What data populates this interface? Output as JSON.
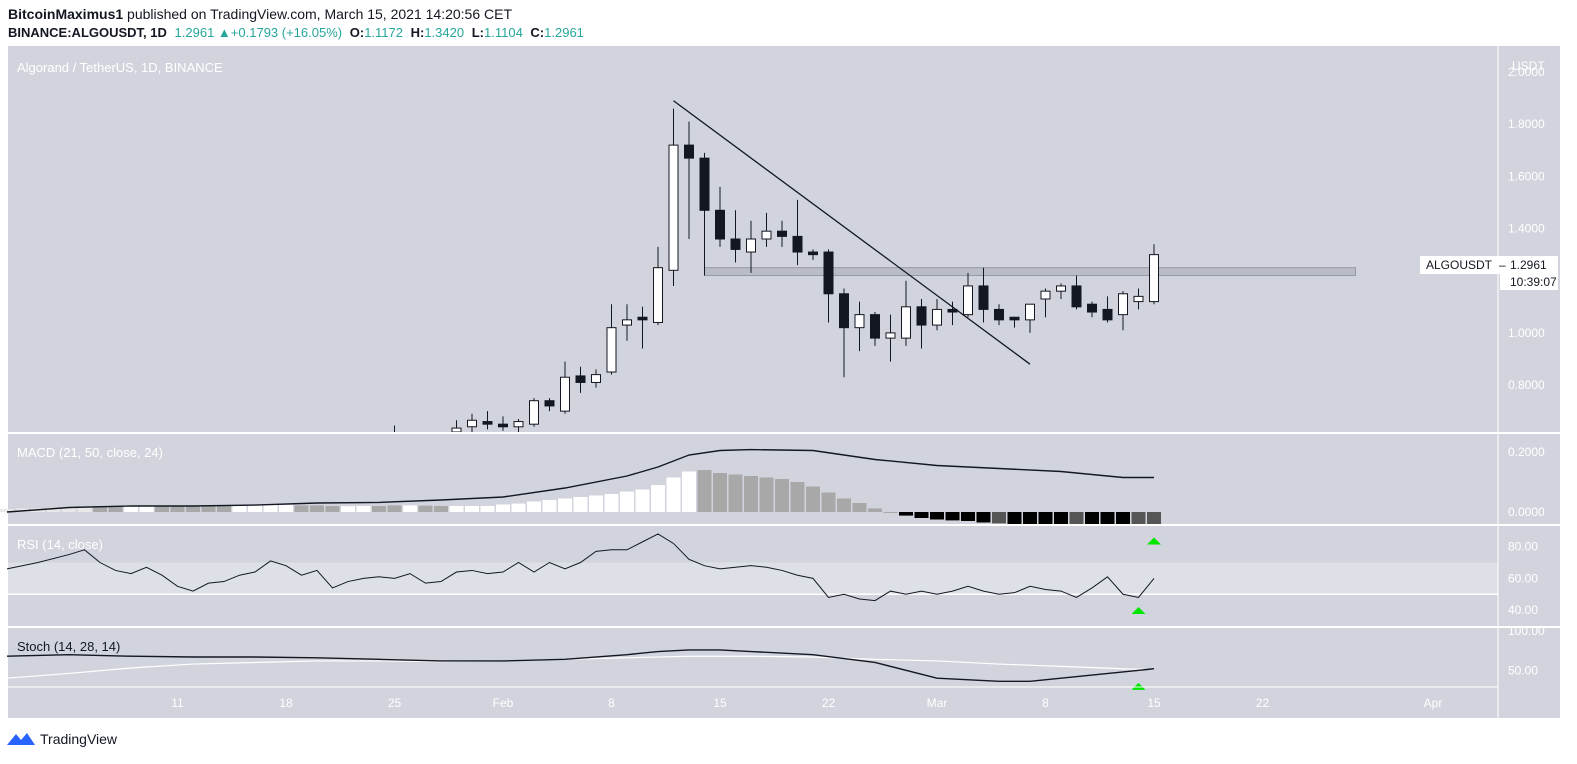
{
  "header": {
    "author": "BitcoinMaximus1",
    "published_text": "published on TradingView.com, March 15, 2021 14:20:56 CET",
    "symbol": "BINANCE:ALGOUSDT, 1D",
    "last": "1.2961",
    "change": "+0.1793 (+16.05%)",
    "o_label": "O:",
    "o": "1.1172",
    "h_label": "H:",
    "h": "1.3420",
    "l_label": "L:",
    "l": "1.1104",
    "c_label": "C:",
    "c": "1.2961"
  },
  "chart_data": {
    "type": "candlestick",
    "title": "Algorand / TetherUS, 1D, BINANCE",
    "currency_label": "USDT",
    "price_ticks": [
      "2.0000",
      "1.8000",
      "1.6000",
      "1.4000",
      "1.2000",
      "1.0000",
      "0.8000"
    ],
    "price_tick_values": [
      2.0,
      1.8,
      1.6,
      1.4,
      1.2,
      1.0,
      0.8
    ],
    "ylim": [
      0.62,
      2.1
    ],
    "price_badge": {
      "symbol": "ALGOUSDT",
      "value": "1.2961",
      "countdown": "10:39:07"
    },
    "x_ticks": [
      {
        "label": "11",
        "day": 11
      },
      {
        "label": "18",
        "day": 18
      },
      {
        "label": "25",
        "day": 25
      },
      {
        "label": "Feb",
        "day": 32
      },
      {
        "label": "8",
        "day": 39
      },
      {
        "label": "15",
        "day": 46
      },
      {
        "label": "22",
        "day": 53
      },
      {
        "label": "Mar",
        "day": 60
      },
      {
        "label": "8",
        "day": 67
      },
      {
        "label": "15",
        "day": 74
      },
      {
        "label": "22",
        "day": 81
      },
      {
        "label": "Apr",
        "day": 92
      }
    ],
    "candles": [
      {
        "day": 25,
        "o": 0.61,
        "h": 0.645,
        "l": 0.6,
        "c": 0.62
      },
      {
        "day": 29,
        "o": 0.62,
        "h": 0.665,
        "l": 0.61,
        "c": 0.635
      },
      {
        "day": 30,
        "o": 0.64,
        "h": 0.69,
        "l": 0.62,
        "c": 0.665
      },
      {
        "day": 31,
        "o": 0.66,
        "h": 0.7,
        "l": 0.63,
        "c": 0.65
      },
      {
        "day": 32,
        "o": 0.65,
        "h": 0.68,
        "l": 0.625,
        "c": 0.64
      },
      {
        "day": 33,
        "o": 0.64,
        "h": 0.67,
        "l": 0.62,
        "c": 0.66
      },
      {
        "day": 34,
        "o": 0.65,
        "h": 0.75,
        "l": 0.64,
        "c": 0.74
      },
      {
        "day": 35,
        "o": 0.74,
        "h": 0.75,
        "l": 0.7,
        "c": 0.72
      },
      {
        "day": 36,
        "o": 0.7,
        "h": 0.89,
        "l": 0.69,
        "c": 0.83
      },
      {
        "day": 37,
        "o": 0.835,
        "h": 0.87,
        "l": 0.77,
        "c": 0.81
      },
      {
        "day": 38,
        "o": 0.81,
        "h": 0.86,
        "l": 0.79,
        "c": 0.84
      },
      {
        "day": 39,
        "o": 0.85,
        "h": 1.11,
        "l": 0.84,
        "c": 1.02
      },
      {
        "day": 40,
        "o": 1.03,
        "h": 1.11,
        "l": 0.97,
        "c": 1.05
      },
      {
        "day": 41,
        "o": 1.06,
        "h": 1.1,
        "l": 0.94,
        "c": 1.05
      },
      {
        "day": 42,
        "o": 1.04,
        "h": 1.33,
        "l": 1.03,
        "c": 1.25
      },
      {
        "day": 43,
        "o": 1.24,
        "h": 1.86,
        "l": 1.18,
        "c": 1.72
      },
      {
        "day": 44,
        "o": 1.72,
        "h": 1.81,
        "l": 1.36,
        "c": 1.67
      },
      {
        "day": 45,
        "o": 1.67,
        "h": 1.69,
        "l": 1.22,
        "c": 1.47
      },
      {
        "day": 46,
        "o": 1.47,
        "h": 1.56,
        "l": 1.33,
        "c": 1.36
      },
      {
        "day": 47,
        "o": 1.36,
        "h": 1.47,
        "l": 1.27,
        "c": 1.32
      },
      {
        "day": 48,
        "o": 1.31,
        "h": 1.43,
        "l": 1.23,
        "c": 1.36
      },
      {
        "day": 49,
        "o": 1.36,
        "h": 1.46,
        "l": 1.33,
        "c": 1.39
      },
      {
        "day": 50,
        "o": 1.39,
        "h": 1.43,
        "l": 1.33,
        "c": 1.37
      },
      {
        "day": 51,
        "o": 1.37,
        "h": 1.51,
        "l": 1.26,
        "c": 1.31
      },
      {
        "day": 52,
        "o": 1.31,
        "h": 1.32,
        "l": 1.28,
        "c": 1.3
      },
      {
        "day": 53,
        "o": 1.31,
        "h": 1.32,
        "l": 1.04,
        "c": 1.15
      },
      {
        "day": 54,
        "o": 1.15,
        "h": 1.17,
        "l": 0.83,
        "c": 1.02
      },
      {
        "day": 55,
        "o": 1.02,
        "h": 1.12,
        "l": 0.93,
        "c": 1.07
      },
      {
        "day": 56,
        "o": 1.07,
        "h": 1.08,
        "l": 0.95,
        "c": 0.98
      },
      {
        "day": 57,
        "o": 0.98,
        "h": 1.07,
        "l": 0.89,
        "c": 1.0
      },
      {
        "day": 58,
        "o": 0.98,
        "h": 1.2,
        "l": 0.95,
        "c": 1.1
      },
      {
        "day": 59,
        "o": 1.1,
        "h": 1.13,
        "l": 0.94,
        "c": 1.03
      },
      {
        "day": 60,
        "o": 1.03,
        "h": 1.13,
        "l": 1.01,
        "c": 1.09
      },
      {
        "day": 61,
        "o": 1.09,
        "h": 1.12,
        "l": 1.03,
        "c": 1.08
      },
      {
        "day": 62,
        "o": 1.07,
        "h": 1.23,
        "l": 1.06,
        "c": 1.18
      },
      {
        "day": 63,
        "o": 1.18,
        "h": 1.25,
        "l": 1.04,
        "c": 1.09
      },
      {
        "day": 64,
        "o": 1.09,
        "h": 1.11,
        "l": 1.03,
        "c": 1.05
      },
      {
        "day": 65,
        "o": 1.06,
        "h": 1.06,
        "l": 1.02,
        "c": 1.05
      },
      {
        "day": 66,
        "o": 1.05,
        "h": 1.11,
        "l": 1.0,
        "c": 1.11
      },
      {
        "day": 67,
        "o": 1.13,
        "h": 1.17,
        "l": 1.06,
        "c": 1.16
      },
      {
        "day": 68,
        "o": 1.16,
        "h": 1.19,
        "l": 1.13,
        "c": 1.18
      },
      {
        "day": 69,
        "o": 1.18,
        "h": 1.22,
        "l": 1.09,
        "c": 1.1
      },
      {
        "day": 70,
        "o": 1.11,
        "h": 1.12,
        "l": 1.06,
        "c": 1.08
      },
      {
        "day": 71,
        "o": 1.09,
        "h": 1.14,
        "l": 1.04,
        "c": 1.05
      },
      {
        "day": 72,
        "o": 1.07,
        "h": 1.16,
        "l": 1.01,
        "c": 1.15
      },
      {
        "day": 73,
        "o": 1.12,
        "h": 1.17,
        "l": 1.09,
        "c": 1.14
      },
      {
        "day": 74,
        "o": 1.12,
        "h": 1.34,
        "l": 1.11,
        "c": 1.3
      }
    ],
    "resistance_zone": {
      "from_day": 45,
      "to_day": 87,
      "low": 1.22,
      "high": 1.25
    },
    "trendline": {
      "day1": 43,
      "price1": 1.89,
      "day2": 66,
      "price2": 0.88
    },
    "macd": {
      "title": "MACD (21, 50, close, 24)",
      "ticks": [
        "0.2000",
        "0.0000"
      ],
      "tick_values": [
        0.2,
        0.0
      ],
      "ylim": [
        -0.04,
        0.26
      ],
      "line_days": [
        0,
        4,
        8,
        12,
        16,
        20,
        24,
        28,
        32,
        36,
        40,
        42,
        44,
        46,
        48,
        52,
        56,
        60,
        64,
        68,
        72,
        74
      ],
      "line": [
        0.0,
        0.015,
        0.02,
        0.02,
        0.023,
        0.03,
        0.032,
        0.04,
        0.05,
        0.08,
        0.12,
        0.15,
        0.19,
        0.205,
        0.208,
        0.205,
        0.175,
        0.155,
        0.145,
        0.135,
        0.115,
        0.115
      ],
      "hist_days": [
        0,
        1,
        2,
        3,
        4,
        5,
        6,
        7,
        8,
        9,
        10,
        11,
        12,
        13,
        14,
        15,
        16,
        17,
        18,
        19,
        20,
        21,
        22,
        23,
        24,
        25,
        26,
        27,
        28,
        29,
        30,
        31,
        32,
        33,
        34,
        35,
        36,
        37,
        38,
        39,
        40,
        41,
        42,
        43,
        44,
        45,
        46,
        47,
        48,
        49,
        50,
        51,
        52,
        53,
        54,
        55,
        56,
        57,
        58,
        59,
        60,
        61,
        62,
        63,
        64,
        65,
        66,
        67,
        68,
        69,
        70,
        71,
        72,
        73,
        74
      ],
      "hist": [
        0.01,
        0.012,
        0.012,
        0.014,
        0.016,
        0.017,
        0.018,
        0.02,
        0.022,
        0.02,
        0.02,
        0.019,
        0.02,
        0.019,
        0.02,
        0.02,
        0.022,
        0.024,
        0.024,
        0.022,
        0.022,
        0.02,
        0.019,
        0.02,
        0.02,
        0.022,
        0.022,
        0.021,
        0.02,
        0.02,
        0.02,
        0.02,
        0.025,
        0.028,
        0.035,
        0.04,
        0.045,
        0.05,
        0.055,
        0.06,
        0.068,
        0.075,
        0.09,
        0.115,
        0.135,
        0.14,
        0.13,
        0.125,
        0.12,
        0.115,
        0.11,
        0.1,
        0.085,
        0.065,
        0.045,
        0.03,
        0.012,
        0.0,
        -0.012,
        -0.02,
        -0.025,
        -0.028,
        -0.03,
        -0.035,
        -0.038,
        -0.04,
        -0.042,
        -0.045,
        -0.045,
        -0.045,
        -0.045,
        -0.045,
        -0.045,
        -0.043,
        -0.04
      ],
      "hist_colors": [
        "#e8e8e8",
        "#e8e8e8",
        "#e8e8e8",
        "#e8e8e8",
        "#e8e8e8",
        "#e8e8e8",
        "#a8a8a8",
        "#a8a8a8",
        "#ffffff",
        "#ffffff",
        "#a8a8a8",
        "#a8a8a8",
        "#a8a8a8",
        "#a8a8a8",
        "#a8a8a8",
        "#ffffff",
        "#ffffff",
        "#ffffff",
        "#ffffff",
        "#a8a8a8",
        "#a8a8a8",
        "#a8a8a8",
        "#ffffff",
        "#ffffff",
        "#a8a8a8",
        "#a8a8a8",
        "#ffffff",
        "#a8a8a8",
        "#a8a8a8",
        "#ffffff",
        "#ffffff",
        "#ffffff",
        "#ffffff",
        "#ffffff",
        "#ffffff",
        "#ffffff",
        "#ffffff",
        "#ffffff",
        "#ffffff",
        "#ffffff",
        "#ffffff",
        "#ffffff",
        "#ffffff",
        "#ffffff",
        "#ffffff",
        "#a8a8a8",
        "#a8a8a8",
        "#a8a8a8",
        "#a8a8a8",
        "#a8a8a8",
        "#a8a8a8",
        "#a8a8a8",
        "#a8a8a8",
        "#a8a8a8",
        "#a8a8a8",
        "#a8a8a8",
        "#a8a8a8",
        "#a8a8a8",
        "#000000",
        "#000000",
        "#000000",
        "#000000",
        "#000000",
        "#000000",
        "#555555",
        "#000000",
        "#000000",
        "#000000",
        "#000000",
        "#555555",
        "#000000",
        "#000000",
        "#000000",
        "#555555",
        "#555555"
      ],
      "signal_arrow_day": 74
    },
    "rsi": {
      "title": "RSI (14, close)",
      "ticks": [
        "80.00",
        "60.00",
        "40.00"
      ],
      "tick_values": [
        80,
        60,
        40
      ],
      "ylim": [
        30,
        93
      ],
      "band": [
        50,
        70
      ],
      "days": [
        0,
        2,
        4,
        5,
        6,
        7,
        8,
        9,
        10,
        11,
        12,
        13,
        14,
        15,
        16,
        17,
        18,
        19,
        20,
        21,
        22,
        23,
        24,
        25,
        26,
        27,
        28,
        29,
        30,
        31,
        32,
        33,
        34,
        35,
        36,
        37,
        38,
        39,
        40,
        41,
        42,
        43,
        44,
        45,
        46,
        47,
        48,
        49,
        50,
        51,
        52,
        53,
        54,
        55,
        56,
        57,
        58,
        59,
        60,
        61,
        62,
        63,
        64,
        65,
        66,
        67,
        68,
        69,
        70,
        71,
        72,
        73,
        74
      ],
      "values": [
        66,
        70,
        75,
        78,
        70,
        65,
        63,
        67,
        62,
        55,
        52,
        57,
        58,
        62,
        64,
        71,
        68,
        62,
        65,
        54,
        58,
        60,
        61,
        60,
        63,
        57,
        58,
        64,
        65,
        63,
        64,
        70,
        64,
        70,
        66,
        70,
        77,
        78,
        78,
        83,
        88,
        82,
        72,
        68,
        66,
        67,
        68,
        67,
        65,
        62,
        60,
        48,
        50,
        47,
        46,
        52,
        50,
        52,
        50,
        52,
        55,
        52,
        50,
        51,
        55,
        53,
        52,
        48,
        54,
        61,
        50,
        48,
        60
      ],
      "signal_arrow_day": 73
    },
    "stoch": {
      "title": "Stoch (14, 28, 14)",
      "ticks": [
        "100.00",
        "50.00"
      ],
      "tick_values": [
        100,
        50
      ],
      "ylim": [
        30,
        104
      ],
      "k_days": [
        0,
        4,
        8,
        12,
        16,
        20,
        24,
        28,
        32,
        36,
        40,
        42,
        44,
        46,
        48,
        52,
        56,
        60,
        64,
        66,
        68,
        72,
        74
      ],
      "k": [
        68,
        70,
        68,
        67,
        67,
        66,
        64,
        62,
        62,
        64,
        70,
        74,
        76,
        76,
        74,
        70,
        60,
        40,
        36,
        36,
        40,
        48,
        52
      ],
      "d_days": [
        0,
        4,
        8,
        12,
        16,
        20,
        24,
        28,
        32,
        36,
        40,
        44,
        48,
        52,
        56,
        60,
        64,
        68,
        72,
        74
      ],
      "d": [
        40,
        46,
        53,
        58,
        60,
        62,
        62,
        61,
        62,
        64,
        66,
        68,
        68,
        67,
        64,
        62,
        58,
        55,
        52,
        51
      ],
      "signal_arrow_day": 73
    }
  },
  "footer": {
    "brand": "TradingView"
  }
}
